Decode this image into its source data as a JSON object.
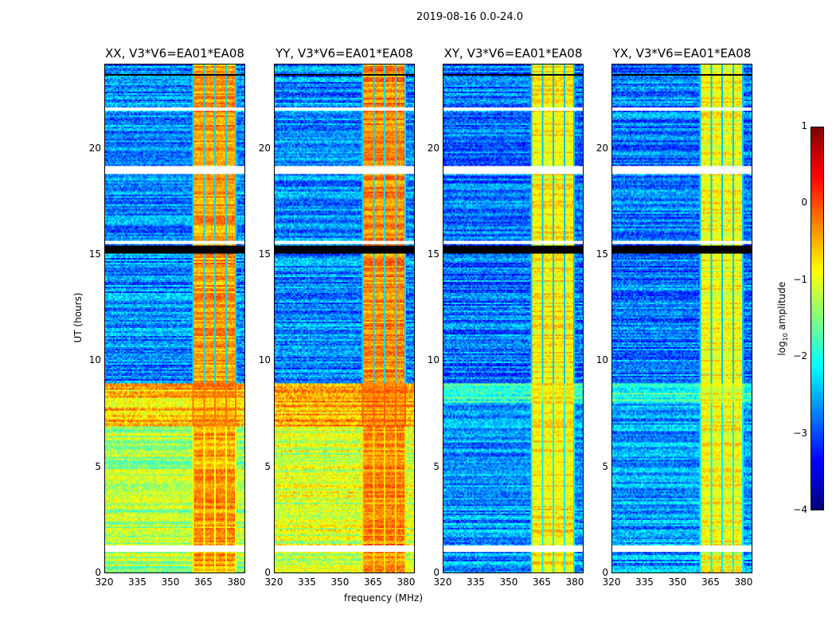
{
  "suptitle": "2019-08-16 0.0-24.0",
  "chart_data": {
    "type": "heatmap",
    "xlabel": "frequency (MHz)",
    "ylabel": "UT (hours)",
    "xlim": [
      320,
      384
    ],
    "ylim": [
      0,
      24
    ],
    "xticks": [
      "320",
      "335",
      "350",
      "365",
      "380"
    ],
    "xtick_values": [
      320,
      335,
      350,
      365,
      380
    ],
    "yticks": [
      "0",
      "5",
      "10",
      "15",
      "20"
    ],
    "ytick_values": [
      0,
      5,
      10,
      15,
      20
    ],
    "colorbar": {
      "label": "log10 amplitude",
      "label_main": "log",
      "label_sub": "10",
      "label_tail": " amplitude",
      "range": [
        -4,
        1
      ],
      "ticks": [
        "1",
        "0",
        "−1",
        "−2",
        "−3",
        "−4"
      ],
      "tick_values": [
        1,
        0,
        -1,
        -2,
        -3,
        -4
      ],
      "colormap": "jet"
    },
    "rfi_band_mhz": [
      360,
      380
    ],
    "flagged_white_hours": [
      [
        1.0,
        1.25
      ],
      [
        18.8,
        19.2
      ],
      [
        21.8,
        22.0
      ],
      [
        15.55,
        15.7
      ]
    ],
    "flagged_black_hours": [
      [
        15.05,
        15.45
      ],
      [
        8.9,
        8.95
      ],
      [
        12.2,
        12.25
      ],
      [
        11.6,
        11.65
      ],
      [
        23.5,
        23.55
      ]
    ],
    "panels": [
      {
        "title": "XX, V3*V6=EA01*EA08",
        "base_levels": [
          [
            0,
            6.9,
            -1.3
          ],
          [
            6.9,
            8.9,
            -0.6
          ],
          [
            8.9,
            24,
            -2.7
          ]
        ],
        "rfi_level": -0.4
      },
      {
        "title": "YY, V3*V6=EA01*EA08",
        "base_levels": [
          [
            0,
            6.9,
            -1.1
          ],
          [
            6.9,
            8.9,
            -0.5
          ],
          [
            8.9,
            24,
            -2.7
          ]
        ],
        "rfi_level": -0.3
      },
      {
        "title": "XY, V3*V6=EA01*EA08",
        "base_levels": [
          [
            0,
            8.0,
            -2.6
          ],
          [
            8.0,
            8.9,
            -1.9
          ],
          [
            8.9,
            24,
            -2.8
          ]
        ],
        "rfi_level": -0.8
      },
      {
        "title": "YX, V3*V6=EA01*EA08",
        "base_levels": [
          [
            0,
            8.0,
            -2.6
          ],
          [
            8.0,
            8.9,
            -1.9
          ],
          [
            8.9,
            24,
            -2.8
          ]
        ],
        "rfi_level": -0.9
      }
    ]
  }
}
